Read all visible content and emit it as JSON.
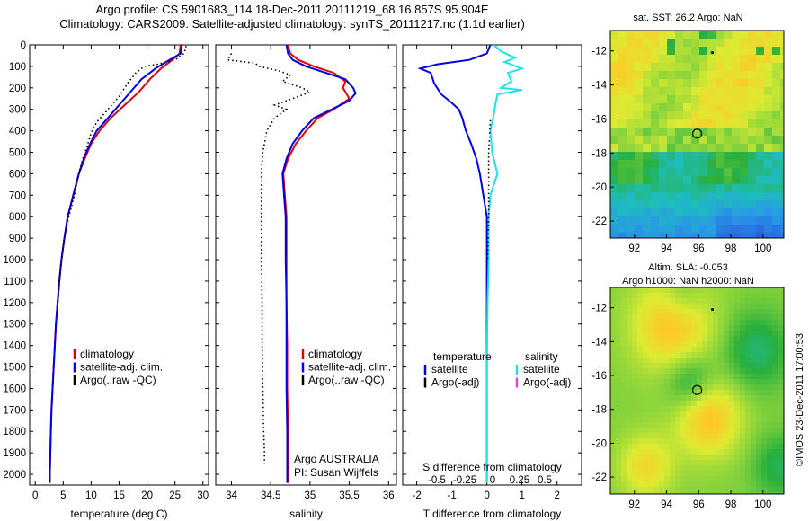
{
  "header": {
    "line1": "Argo profile: CS 5901683_114 18-Dec-2011 20111219_68 16.857S 95.904E",
    "line2": "Climatology: CARS2009. Satellite-adjusted climatology: synTS_20111217.nc (1.1d earlier)"
  },
  "side_note": "©IMOS 23-Dec-2011 17:00:53",
  "colors": {
    "climatology": "#e00000",
    "satellite": "#0000e0",
    "argo": "#000000",
    "salinity_satellite": "#20e0e8",
    "salinity_argo": "#e040e0"
  },
  "chart_data": [
    {
      "type": "line",
      "panel": "temperature",
      "xlabel": "temperature (deg C)",
      "ylabel": "",
      "xlim": [
        -1,
        31
      ],
      "ylim": [
        2050,
        0
      ],
      "xticks": [
        0,
        5,
        10,
        15,
        20,
        25,
        30
      ],
      "yticks": [
        0,
        100,
        200,
        300,
        400,
        500,
        600,
        700,
        800,
        900,
        1000,
        1100,
        1200,
        1300,
        1400,
        1500,
        1600,
        1700,
        1800,
        1900,
        2000
      ],
      "legend": [
        "climatology",
        "satellite-adj. clim.",
        "Argo(..raw -QC)"
      ],
      "series": [
        {
          "name": "climatology",
          "style": "solid",
          "points": [
            [
              26.0,
              0
            ],
            [
              25.8,
              40
            ],
            [
              24.5,
              70
            ],
            [
              22.5,
              110
            ],
            [
              20.5,
              160
            ],
            [
              18.5,
              220
            ],
            [
              16.0,
              280
            ],
            [
              13.5,
              340
            ],
            [
              11.5,
              400
            ],
            [
              10.0,
              460
            ],
            [
              9.0,
              520
            ],
            [
              7.8,
              600
            ],
            [
              6.8,
              700
            ],
            [
              5.8,
              800
            ],
            [
              5.2,
              900
            ],
            [
              4.7,
              1000
            ],
            [
              4.3,
              1100
            ],
            [
              4.0,
              1200
            ],
            [
              3.7,
              1300
            ],
            [
              3.5,
              1400
            ],
            [
              3.3,
              1500
            ],
            [
              3.1,
              1600
            ],
            [
              2.9,
              1700
            ],
            [
              2.8,
              1800
            ],
            [
              2.7,
              1900
            ],
            [
              2.6,
              2000
            ],
            [
              2.6,
              2040
            ]
          ]
        },
        {
          "name": "satellite-adj. clim.",
          "style": "solid",
          "points": [
            [
              26.2,
              0
            ],
            [
              26.0,
              40
            ],
            [
              24.0,
              70
            ],
            [
              21.5,
              110
            ],
            [
              19.0,
              160
            ],
            [
              17.0,
              220
            ],
            [
              15.0,
              280
            ],
            [
              13.0,
              340
            ],
            [
              11.0,
              400
            ],
            [
              9.8,
              460
            ],
            [
              8.8,
              520
            ],
            [
              7.8,
              600
            ],
            [
              6.8,
              700
            ],
            [
              5.8,
              800
            ],
            [
              5.2,
              900
            ],
            [
              4.7,
              1000
            ],
            [
              4.3,
              1100
            ],
            [
              4.0,
              1200
            ],
            [
              3.7,
              1300
            ],
            [
              3.5,
              1400
            ],
            [
              3.3,
              1500
            ],
            [
              3.1,
              1600
            ],
            [
              2.9,
              1700
            ],
            [
              2.8,
              1800
            ],
            [
              2.7,
              1900
            ],
            [
              2.6,
              2000
            ],
            [
              2.6,
              2040
            ]
          ]
        },
        {
          "name": "Argo(..raw -QC)",
          "style": "dotted",
          "points": [
            [
              27.0,
              5
            ],
            [
              26.6,
              40
            ],
            [
              25.0,
              70
            ],
            [
              22.0,
              90
            ],
            [
              19.5,
              100
            ],
            [
              18.0,
              130
            ],
            [
              16.5,
              180
            ],
            [
              15.0,
              240
            ],
            [
              13.0,
              300
            ],
            [
              11.0,
              360
            ],
            [
              10.0,
              410
            ],
            [
              9.3,
              470
            ],
            [
              8.5,
              530
            ],
            [
              7.8,
              600
            ],
            [
              7.0,
              700
            ],
            [
              6.0,
              800
            ],
            [
              5.2,
              900
            ],
            [
              4.7,
              1000
            ],
            [
              4.3,
              1100
            ],
            [
              4.0,
              1200
            ]
          ]
        }
      ]
    },
    {
      "type": "line",
      "panel": "salinity",
      "xlabel": "salinity",
      "ylabel": "",
      "xlim": [
        33.8,
        36.1
      ],
      "ylim": [
        2050,
        0
      ],
      "xticks": [
        34,
        34.5,
        35,
        35.5,
        36
      ],
      "legend": [
        "climatology",
        "satellite-adj. clim.",
        "Argo(..raw -QC)"
      ],
      "annotations": [
        "Argo AUSTRALIA",
        "PI: Susan Wijffels"
      ],
      "series": [
        {
          "name": "climatology",
          "style": "solid",
          "points": [
            [
              34.72,
              0
            ],
            [
              34.75,
              40
            ],
            [
              34.85,
              70
            ],
            [
              35.05,
              100
            ],
            [
              35.3,
              130
            ],
            [
              35.45,
              170
            ],
            [
              35.42,
              200
            ],
            [
              35.5,
              250
            ],
            [
              35.3,
              300
            ],
            [
              35.1,
              340
            ],
            [
              34.95,
              400
            ],
            [
              34.82,
              460
            ],
            [
              34.72,
              530
            ],
            [
              34.66,
              600
            ],
            [
              34.68,
              700
            ],
            [
              34.7,
              800
            ],
            [
              34.7,
              1000
            ],
            [
              34.7,
              1200
            ],
            [
              34.71,
              1400
            ],
            [
              34.71,
              1600
            ],
            [
              34.72,
              1800
            ],
            [
              34.72,
              2000
            ],
            [
              34.72,
              2040
            ]
          ]
        },
        {
          "name": "satellite-adj. clim.",
          "style": "solid",
          "points": [
            [
              34.7,
              0
            ],
            [
              34.72,
              40
            ],
            [
              34.78,
              70
            ],
            [
              34.95,
              100
            ],
            [
              35.2,
              130
            ],
            [
              35.45,
              160
            ],
            [
              35.55,
              200
            ],
            [
              35.58,
              225
            ],
            [
              35.5,
              260
            ],
            [
              35.28,
              300
            ],
            [
              35.05,
              340
            ],
            [
              34.9,
              400
            ],
            [
              34.78,
              460
            ],
            [
              34.7,
              530
            ],
            [
              34.65,
              600
            ],
            [
              34.67,
              700
            ],
            [
              34.69,
              800
            ],
            [
              34.69,
              1000
            ],
            [
              34.7,
              1200
            ],
            [
              34.7,
              1400
            ],
            [
              34.7,
              1600
            ],
            [
              34.71,
              1800
            ],
            [
              34.71,
              2000
            ],
            [
              34.71,
              2040
            ]
          ]
        },
        {
          "name": "Argo(..raw -QC)",
          "style": "dotted",
          "points": [
            [
              34.0,
              40
            ],
            [
              33.95,
              70
            ],
            [
              34.3,
              85
            ],
            [
              34.35,
              100
            ],
            [
              34.6,
              120
            ],
            [
              34.75,
              140
            ],
            [
              34.65,
              170
            ],
            [
              34.9,
              200
            ],
            [
              35.0,
              220
            ],
            [
              34.7,
              260
            ],
            [
              34.55,
              280
            ],
            [
              34.7,
              300
            ],
            [
              34.55,
              340
            ],
            [
              34.45,
              400
            ],
            [
              34.4,
              500
            ],
            [
              34.38,
              600
            ],
            [
              34.38,
              700
            ],
            [
              34.38,
              800
            ],
            [
              34.38,
              900
            ],
            [
              34.38,
              1000
            ],
            [
              34.39,
              1200
            ],
            [
              34.39,
              1400
            ],
            [
              34.4,
              1600
            ],
            [
              34.41,
              1800
            ],
            [
              34.42,
              1900
            ],
            [
              34.42,
              1950
            ]
          ]
        }
      ]
    },
    {
      "type": "line",
      "panel": "difference",
      "xlabel": "T difference from climatology",
      "xlabel_top": "S difference from climatology",
      "ylabel": "",
      "xlim": [
        -2.4,
        2.7
      ],
      "ylim": [
        2050,
        0
      ],
      "xticks": [
        -2,
        -1,
        0,
        1,
        2
      ],
      "xticks_top": [
        -0.5,
        -0.25,
        0,
        0.25,
        0.5
      ],
      "legend_left": {
        "title": "temperature",
        "items": [
          "satellite",
          "Argo(-adj)"
        ]
      },
      "legend_right": {
        "title": "salinity",
        "items": [
          "satellite",
          "Argo(-adj)"
        ]
      },
      "series": [
        {
          "name": "temperature satellite",
          "style": "solid",
          "points": [
            [
              0.1,
              0
            ],
            [
              0.0,
              40
            ],
            [
              -0.5,
              70
            ],
            [
              -1.4,
              90
            ],
            [
              -1.9,
              110
            ],
            [
              -1.6,
              130
            ],
            [
              -1.5,
              180
            ],
            [
              -1.3,
              230
            ],
            [
              -1.0,
              270
            ],
            [
              -0.8,
              300
            ],
            [
              -0.7,
              340
            ],
            [
              -0.6,
              400
            ],
            [
              -0.45,
              460
            ],
            [
              -0.3,
              530
            ],
            [
              -0.2,
              600
            ],
            [
              -0.1,
              700
            ],
            [
              0.0,
              800
            ],
            [
              0.0,
              1000
            ],
            [
              0.0,
              1200
            ],
            [
              0.0,
              1500
            ],
            [
              0.0,
              1800
            ],
            [
              0.0,
              2040
            ]
          ]
        },
        {
          "name": "salinity satellite",
          "style": "solid",
          "points": [
            [
              0.2,
              0
            ],
            [
              0.4,
              30
            ],
            [
              0.8,
              60
            ],
            [
              0.5,
              80
            ],
            [
              1.0,
              110
            ],
            [
              0.6,
              130
            ],
            [
              0.7,
              170
            ],
            [
              0.4,
              200
            ],
            [
              1.0,
              210
            ],
            [
              0.3,
              230
            ],
            [
              0.25,
              270
            ],
            [
              0.2,
              320
            ],
            [
              0.1,
              400
            ],
            [
              0.15,
              500
            ],
            [
              0.3,
              600
            ],
            [
              0.1,
              700
            ],
            [
              0.05,
              800
            ],
            [
              0.05,
              1000
            ],
            [
              0.02,
              1200
            ],
            [
              0.0,
              1500
            ],
            [
              0.0,
              1800
            ],
            [
              0.0,
              2040
            ]
          ]
        },
        {
          "name": "Argo(-adj)",
          "style": "dotted",
          "points": [
            [
              0.1,
              350
            ],
            [
              0.05,
              500
            ],
            [
              0.05,
              800
            ],
            [
              0.02,
              1000
            ]
          ]
        }
      ]
    },
    {
      "type": "heatmap",
      "panel": "sst-map",
      "title": "sat. SST: 26.2 Argo: NaN",
      "xlim": [
        90.5,
        101.3
      ],
      "ylim": [
        -23,
        -10.8
      ],
      "xticks": [
        92,
        94,
        96,
        98,
        100
      ],
      "yticks": [
        -12,
        -14,
        -16,
        -18,
        -20,
        -22
      ],
      "marker": [
        95.904,
        -16.857
      ]
    },
    {
      "type": "heatmap",
      "panel": "sla-map",
      "title": "Altim. SLA: -0.053",
      "subtitle": "Argo h1000: NaN h2000: NaN",
      "xlim": [
        90.5,
        101.3
      ],
      "ylim": [
        -23,
        -10.8
      ],
      "xticks": [
        92,
        94,
        96,
        98,
        100
      ],
      "yticks": [
        -12,
        -14,
        -16,
        -18,
        -20,
        -22
      ],
      "marker": [
        95.904,
        -16.857
      ]
    }
  ]
}
